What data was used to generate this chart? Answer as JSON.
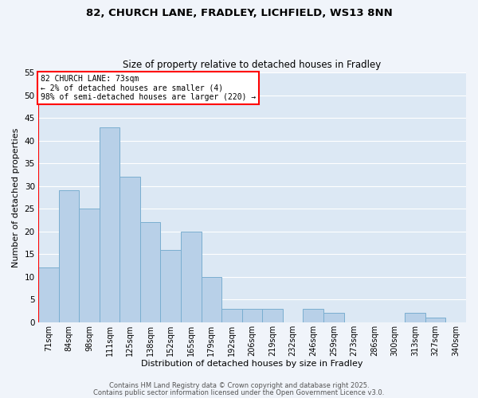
{
  "title": "82, CHURCH LANE, FRADLEY, LICHFIELD, WS13 8NN",
  "subtitle": "Size of property relative to detached houses in Fradley",
  "xlabel": "Distribution of detached houses by size in Fradley",
  "ylabel": "Number of detached properties",
  "bar_color": "#b8d0e8",
  "bar_edgecolor": "#7aaed0",
  "background_color": "#f0f4fa",
  "plot_bg_color": "#dce8f4",
  "bins": [
    "71sqm",
    "84sqm",
    "98sqm",
    "111sqm",
    "125sqm",
    "138sqm",
    "152sqm",
    "165sqm",
    "179sqm",
    "192sqm",
    "206sqm",
    "219sqm",
    "232sqm",
    "246sqm",
    "259sqm",
    "273sqm",
    "286sqm",
    "300sqm",
    "313sqm",
    "327sqm",
    "340sqm"
  ],
  "values": [
    12,
    29,
    25,
    43,
    32,
    22,
    16,
    20,
    10,
    3,
    3,
    3,
    0,
    3,
    2,
    0,
    0,
    0,
    2,
    1,
    0
  ],
  "ylim": [
    0,
    55
  ],
  "yticks": [
    0,
    5,
    10,
    15,
    20,
    25,
    30,
    35,
    40,
    45,
    50,
    55
  ],
  "annotation_line1": "82 CHURCH LANE: 73sqm",
  "annotation_line2": "← 2% of detached houses are smaller (4)",
  "annotation_line3": "98% of semi-detached houses are larger (220) →",
  "footer1": "Contains HM Land Registry data © Crown copyright and database right 2025.",
  "footer2": "Contains public sector information licensed under the Open Government Licence v3.0.",
  "grid_color": "#ffffff"
}
